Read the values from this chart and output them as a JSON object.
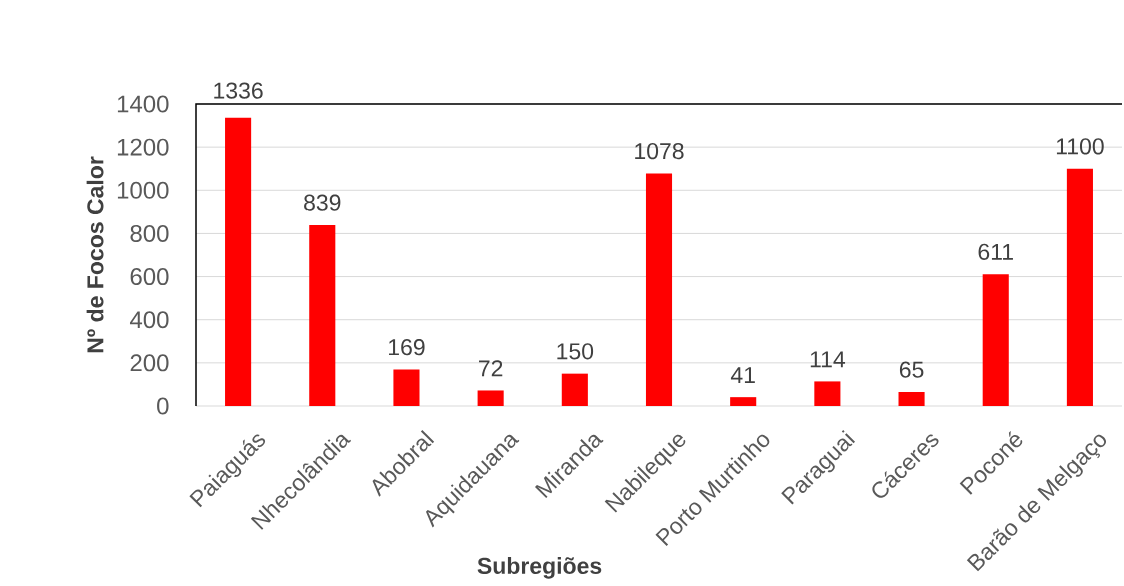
{
  "chart_data": {
    "type": "bar",
    "xlabel": "Subregiões",
    "ylabel": "Nº de Focos Calor",
    "categories": [
      "Paiaguás",
      "Nhecolândia",
      "Abobral",
      "Aquidauana",
      "Miranda",
      "Nabileque",
      "Porto Murtinho",
      "Paraguai",
      "Cáceres",
      "Poconé",
      "Barão de Melgaço"
    ],
    "values": [
      1336,
      839,
      169,
      72,
      150,
      1078,
      41,
      114,
      65,
      611,
      1100
    ],
    "color": "#ff0000",
    "ylim": [
      0,
      1400
    ],
    "yticks": [
      0,
      200,
      400,
      600,
      800,
      1000,
      1200,
      1400
    ],
    "grid": "y",
    "data_labels": true
  }
}
